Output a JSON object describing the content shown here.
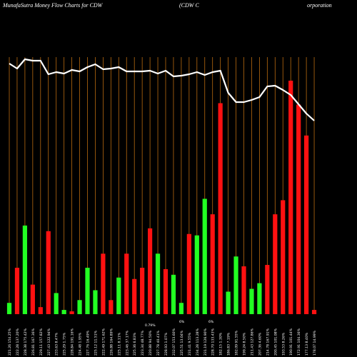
{
  "header": {
    "left": "MunafaSutra  Money Flow  Charts for CDW",
    "middle": "(CDW C",
    "right": "orporation"
  },
  "colors": {
    "background": "#000000",
    "up_bar": "#22ff22",
    "down_bar": "#ff1111",
    "price_line": "#ffffff",
    "grid_line": "#b86a10",
    "label_text": "#ffffff"
  },
  "chart_data": {
    "type": "bar",
    "title": "MunafaSutra  Money Flow  Charts for CDW",
    "series": [
      {
        "values": [
          8,
          33,
          63,
          21,
          5,
          59,
          15,
          3,
          2,
          10,
          33,
          17,
          43,
          10,
          26,
          43,
          25,
          33,
          61,
          43,
          32,
          28,
          8,
          57,
          56,
          82,
          71,
          150,
          16,
          41,
          34,
          18,
          22,
          35,
          71,
          81,
          166,
          149,
          127,
          3
        ],
        "colors": [
          "green",
          "red",
          "green",
          "red",
          "red",
          "red",
          "green",
          "green",
          "red",
          "green",
          "green",
          "green",
          "red",
          "red",
          "green",
          "red",
          "red",
          "red",
          "red",
          "green",
          "red",
          "green",
          "green",
          "red",
          "green",
          "green",
          "red",
          "red",
          "green",
          "green",
          "red",
          "green",
          "green",
          "red",
          "red",
          "red",
          "red",
          "red",
          "red",
          "red"
        ]
      },
      {
        "type": "line",
        "values": [
          351,
          344,
          357,
          355,
          355,
          336,
          339,
          337,
          342,
          340,
          346,
          350,
          343,
          344,
          346,
          340,
          340,
          340,
          341,
          337,
          341,
          333,
          334,
          336,
          339,
          335,
          339,
          341,
          310,
          297,
          297,
          300,
          304,
          319,
          320,
          314,
          307,
          294,
          281,
          271
        ]
      }
    ],
    "x_tick_labels": [
      "221.26 154.25%",
      "222.28 137.20%",
      "228.38 175.42%",
      "226.81 167.36%",
      "229.11 157.82%",
      "227.43 122.94%",
      "233.63 8.47%",
      "225.29 1.75%",
      "228.84 191.16%",
      "224.48 1.95%",
      "227.76 16.49%",
      "225.12 11.51%",
      "222.49 171.62%",
      "226.88 164.89%",
      "225.11 8.11%",
      "223.46 37.17%",
      "225.36 6.83%",
      "223.34 48.77%",
      "220.88 94.50%",
      "227.78 40.41%",
      "228.93 1.07%",
      "232.07 153.60%",
      "225.51 13.04%",
      "231.41 9.55%",
      "234.28 113.28%",
      "231.19 126.90%",
      "228.70 133.43%",
      "182.15 1.30%",
      "186.83 7.19%",
      "182.09 91.55%",
      "199.24 8.50%",
      "211.43 127.86%",
      "207.36 4.60%",
      "214.78 167.91%",
      "200.45 101.08%",
      "193.53 8.26%",
      "190.91 101.44%",
      "172.91 104.36%",
      "177.13 8.40%",
      "178.07 14.99%"
    ],
    "annotations": [
      "0.79%",
      "6%",
      "6%"
    ]
  }
}
